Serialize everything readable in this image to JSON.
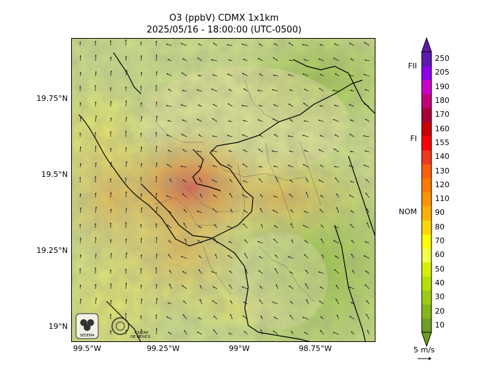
{
  "title": {
    "line1": "O3 (ppbV) CDMX 1x1km",
    "line2": "2025/05/16 - 18:00:00 (UTC-0500)"
  },
  "y_ticks": [
    "19.75°N",
    "19.5°N",
    "19.25°N",
    "19°N"
  ],
  "x_ticks": [
    "99.5°W",
    "99.25°W",
    "99°W",
    "98.75°W"
  ],
  "colorbar": {
    "levels": [
      "10",
      "20",
      "30",
      "40",
      "50",
      "60",
      "70",
      "80",
      "90",
      "110",
      "120",
      "130",
      "140",
      "155",
      "160",
      "170",
      "180",
      "190",
      "205",
      "250"
    ],
    "colors": [
      "#6f9e22",
      "#86b61c",
      "#9ccc12",
      "#b6e000",
      "#d4ef00",
      "#f2ff4a",
      "#ffff00",
      "#ffd600",
      "#ffb000",
      "#ff9400",
      "#ff7a00",
      "#ff5e0a",
      "#ee3a1e",
      "#ff0000",
      "#cc0000",
      "#a8003a",
      "#c2007a",
      "#cc00cc",
      "#8e00ee",
      "#5e1ab0"
    ],
    "categories": [
      "FII",
      "FI",
      "NOM"
    ]
  },
  "wind_key": "5 m/s",
  "logos": [
    "SEDEMA",
    "CIUDAD DE MÉXICO"
  ]
}
